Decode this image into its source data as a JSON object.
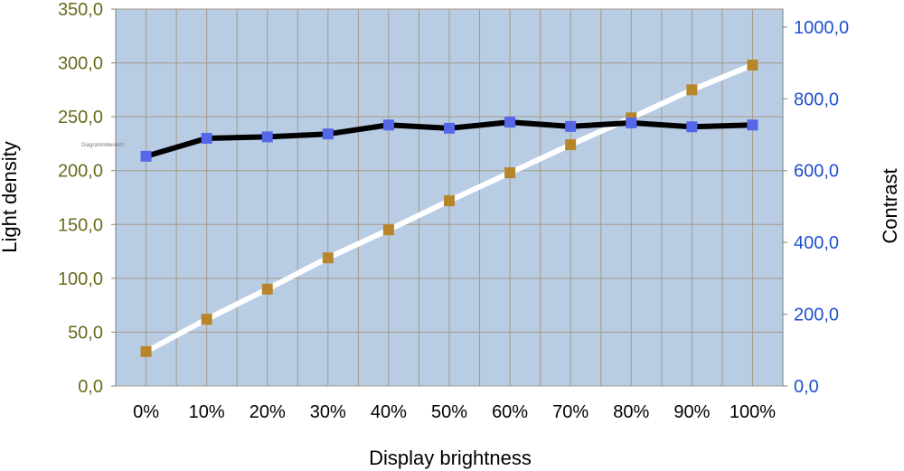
{
  "chart_data": {
    "type": "line",
    "categories": [
      "0%",
      "10%",
      "20%",
      "30%",
      "40%",
      "50%",
      "60%",
      "70%",
      "80%",
      "90%",
      "100%"
    ],
    "xlabel": "Display brightness",
    "ylabel": "Light density",
    "ylabel_right": "Contrast",
    "ylim": [
      0,
      350
    ],
    "ylim_right": [
      0,
      1050
    ],
    "yticks": [
      "0,0",
      "50,0",
      "100,0",
      "150,0",
      "200,0",
      "250,0",
      "300,0",
      "350,0"
    ],
    "yticks_right": [
      "0,0",
      "200,0",
      "400,0",
      "600,0",
      "800,0",
      "1000,0"
    ],
    "grid": true,
    "legend": "none",
    "inner_label": "Diagrammbereich",
    "series": [
      {
        "axis": "left",
        "line_color": "#ffffff",
        "marker_color": "#b8862a",
        "values": [
          32,
          62,
          90,
          119,
          145,
          172,
          198,
          224,
          249,
          275,
          298
        ]
      },
      {
        "axis": "right",
        "line_color": "#000000",
        "marker_color": "#5566e8",
        "values": [
          640,
          690,
          694,
          702,
          727,
          718,
          735,
          723,
          733,
          722,
          727
        ]
      }
    ],
    "colors": {
      "plot_background": "#b8cce4",
      "gridline": "#a69a88",
      "left_axis_text": "#6b6b1f",
      "right_axis_text": "#1f4fd1"
    }
  }
}
